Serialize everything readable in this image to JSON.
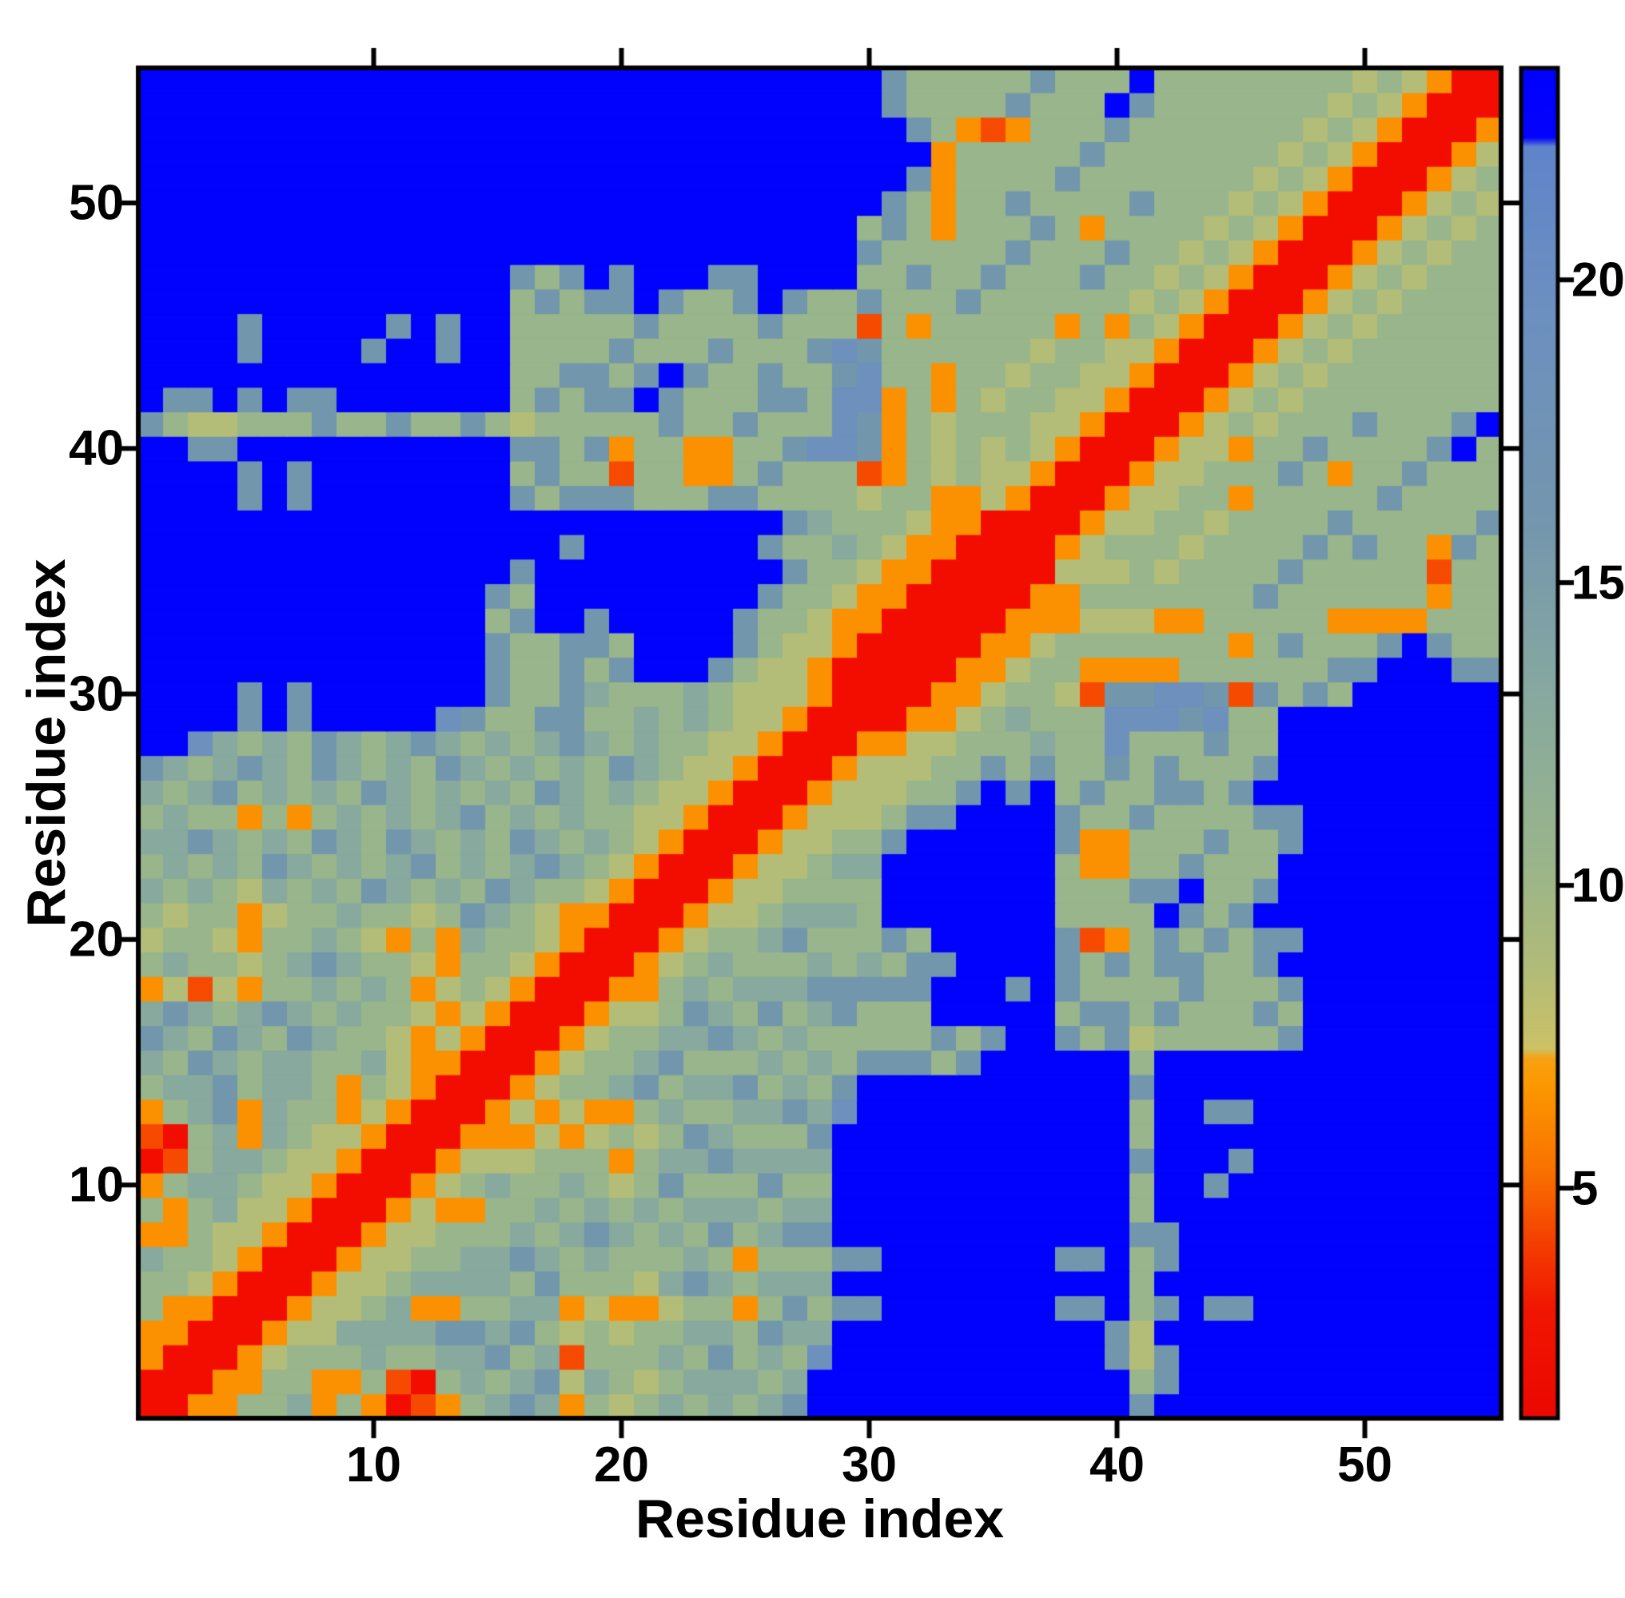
{
  "chart_data": {
    "type": "heatmap",
    "title": "",
    "xlabel": "Residue index",
    "ylabel": "Residue index",
    "n": 55,
    "x_range": [
      1,
      55
    ],
    "y_range": [
      1,
      55
    ],
    "x_ticks": [
      10,
      20,
      30,
      40,
      50
    ],
    "y_ticks": [
      10,
      20,
      30,
      40,
      50
    ],
    "grid": "off",
    "frame_color": "#000000",
    "colorbar": {
      "position": "right",
      "ticks": [
        5,
        10,
        15,
        20
      ],
      "vmin": 1.2,
      "vmax": 23.5,
      "cap_color": "#0000fe",
      "gradient_stops": [
        [
          1.2,
          "#ec0800"
        ],
        [
          3.0,
          "#f11602"
        ],
        [
          4.2,
          "#f54300"
        ],
        [
          5.3,
          "#f97200"
        ],
        [
          6.7,
          "#fc9800"
        ],
        [
          7.15,
          "#f7a214"
        ],
        [
          7.3,
          "#ccc266"
        ],
        [
          8.6,
          "#b1bc78"
        ],
        [
          10.5,
          "#99b48c"
        ],
        [
          13.0,
          "#88aa9f"
        ],
        [
          16.0,
          "#7496ae"
        ],
        [
          19.5,
          "#6c90c0"
        ],
        [
          22.2,
          "#6084ca"
        ],
        [
          22.35,
          "#0303fd"
        ],
        [
          23.5,
          "#0000fe"
        ]
      ]
    },
    "cell_palette": {
      "R": "#f30d00",
      "r": "#f64a00",
      "O": "#fb9100",
      "y": "#b4bd78",
      "g": "#98b58b",
      "G": "#87a99e",
      "b": "#7296ac",
      "B": "#6d90bd",
      "X": "#0101fe"
    },
    "cell_values": {
      "R": 2.0,
      "r": 4.5,
      "O": 6.5,
      "y": 8.5,
      "g": 10.5,
      "G": 13.0,
      "b": 16.0,
      "B": 19.0,
      "X": 23.5
    },
    "matrix_layout": "symmetric lower triangle; row k (1-based, y=k from bottom) holds columns x=1..k; mirror for x>y",
    "matrix_tri_rows": [
      "R",
      "RR",
      "ORR",
      "OORR",
      "gOORR",
      "ggyORR",
      "GggyORR",
      "OOgyyORR",
      "gOgGyyORR",
      "OgGGgyyORR",
      "RrgGGgyyORR",
      "rRgGOGgyyORR",
      "OgGbOGggOyORR",
      "gGGbgGGgOgyORR",
      "GgbGgGGggGyOORR",
      "bGgbGgbGggyOyORR",
      "GbGgGbGgGggyOyORR",
      "OyryOggGgGgOygyORR",
      "gGggygGbGggyOggyORR",
      "yggyOggGgyOgOGggyORR",
      "gyggOyggGggygbGgyOORR",
      "GgGgyGgGgbGgGgbGggyORR",
      "gGgGgbGgGgGbgGgGbGgyORR",
      "GGbGgGgbGgbGgGgbGgGgyORR",
      "gGggOgOgGgGgGbgGgGggyyORR",
      "GgGbgGgGgbGgGgGgbGgGgyyORR",
      "bGgGbGgbGgGgbGgGgGgbGgyyORR",
      "XXBGgGgbGgGbGgGgGbGgGggyyORR",
      "XXXXbXbXXXXXBbggbbggGgGgyyORR",
      "XXXXbXbXXXXXXXbggbGgggGgyyyORR",
      "XXXXXXXXXXXXXXbggbgbXXXbgyyORRR",
      "XXXXXXXXXXXXXXbggbbgXXXXbgyyORRR",
      "XXXXXXXXXXXXXXgbXXbXXXXXbggyOORRR",
      "XXXXXXXXXXXXXXbgXXXXXXXXXbggyOORRR",
      "XXXXXXXXXXXXXXXbXXXXXXXXXXbggyOORRR",
      "XXXXXXXXXXXXXXXXXbXXXXXXXbggGgyOORRR",
      "XXXXXXXXXXXXXXXXXXXXXXXXXXbGgggyOORRR",
      "XXXXbXbXXXXXXXXbgbbbgggbbggggyggOOyORR",
      "XXXXbXbXXXXXXXXgbggrggOOgbgggrOgygyyORR",
      "XXbbXXXXXXXXXXXbbgbOggOOggbBBbOgygygyORR",
      "bgyygggbggbggbgygggggbggbgggBbOgygggyyORR",
      "XbbXbXbbXXXXXXXgbgbbXbgggbbgBBOgOgyggyyORR",
      "XXXXXXXXXXXXXXXggbbgbXbggbggbBggOggyggyyORR",
      "XXXXbXXXXbXXbXXggggbgggbgggbBbggggggyggyyORR",
      "XXXXbXXXXXbXbXXgggggbggggbgggrgOgggggOgOgyORR",
      "XXXXXXXXXXXXXXXgbgbbXbggbXbggbgggbggggggygyORR",
      "XXXXXXXXXXXXXXXbgbXbXXXbbXXXXggbggbgggbggygyORR",
      "XXXXXXXXXXXXXXXXXXXXXXXXXXXXXbgggggbgggbggygyORR",
      "XXXXXXXXXXXXXXXXXXXXXXXXXXXXXgbgOgggbgOggggygyORR",
      "XXXXXXXXXXXXXXXXXXXXXXXXXXXXXXbgOggbggggbgggygyORR",
      "XXXXXXXXXXXXXXXXXXXXXXXXXXXXXXXbOggggbgggggggygyORR",
      "XXXXXXXXXXXXXXXXXXXXXXXXXXXXXXXXOgggggbgggggggygyORR",
      "XXXXXXXXXXXXXXXXXXXXXXXXXXXXXXXbgOrOgggbgggggggygyORR",
      "XXXXXXXXXXXXXXXXXXXXXXXXXXXXXXbggggbgggXbgggggggygyORR",
      "XXXXXXXXXXXXXXXXXXXXXXXXXXXXXXbgggggbgggXggggggggygyORR"
    ]
  }
}
